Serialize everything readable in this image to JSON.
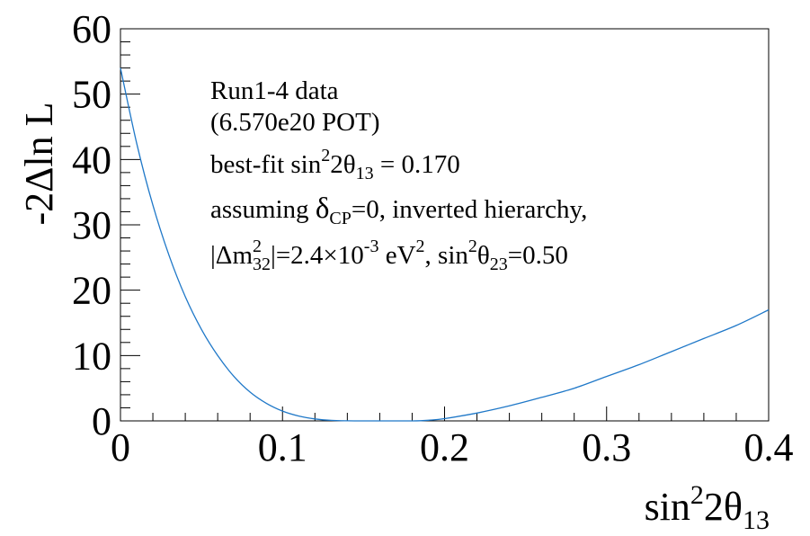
{
  "chart_data": {
    "type": "line",
    "xlabel": {
      "base": "sin",
      "sup": "2",
      "mid": "2θ",
      "sub": "13"
    },
    "ylabel": "-2Δln L",
    "xlim": [
      0,
      0.4
    ],
    "ylim": [
      0,
      60
    ],
    "xticks": [
      0,
      0.1,
      0.2,
      0.3,
      0.4
    ],
    "xtick_labels": [
      "0",
      "0.1",
      "0.2",
      "0.3",
      "0.4"
    ],
    "yticks": [
      0,
      10,
      20,
      30,
      40,
      50,
      60
    ],
    "ytick_labels": [
      "0",
      "10",
      "20",
      "30",
      "40",
      "50",
      "60"
    ],
    "grid": false,
    "series": [
      {
        "color": "#1f78c8",
        "x": [
          0,
          0.01,
          0.02,
          0.03,
          0.04,
          0.05,
          0.06,
          0.07,
          0.08,
          0.09,
          0.1,
          0.11,
          0.12,
          0.13,
          0.14,
          0.15,
          0.16,
          0.17,
          0.18,
          0.19,
          0.2,
          0.22,
          0.24,
          0.26,
          0.28,
          0.3,
          0.32,
          0.34,
          0.36,
          0.38,
          0.4
        ],
        "y": [
          54.0,
          42.5,
          33.0,
          25.3,
          19.0,
          14.0,
          10.0,
          6.8,
          4.4,
          2.7,
          1.5,
          0.75,
          0.3,
          0.08,
          0.01,
          0.0,
          0.0,
          0.0,
          0.0,
          0.1,
          0.35,
          1.2,
          2.3,
          3.6,
          5.0,
          6.8,
          8.6,
          10.6,
          12.6,
          14.6,
          17.0
        ]
      }
    ],
    "annotations": {
      "line1": "Run1-4 data",
      "line2": "(6.570e20 POT)",
      "line3": {
        "a": "best-fit sin",
        "sup": "2",
        "b": "2θ",
        "sub": "13",
        "c": " = 0.170"
      },
      "line4": {
        "a": "assuming ",
        "delta": "δ",
        "sub": "CP",
        "c": "=0, inverted hierarchy,"
      },
      "line5": {
        "a": "|Δm",
        "sup1": "2",
        "sub1": "32",
        "b": "|=2.4×10",
        "sup2": "-3",
        "c": " eV",
        "sup3": "2",
        "d": ", sin",
        "sup4": "2",
        "e": "θ",
        "sub4": "23",
        "f": "=0.50"
      }
    }
  }
}
